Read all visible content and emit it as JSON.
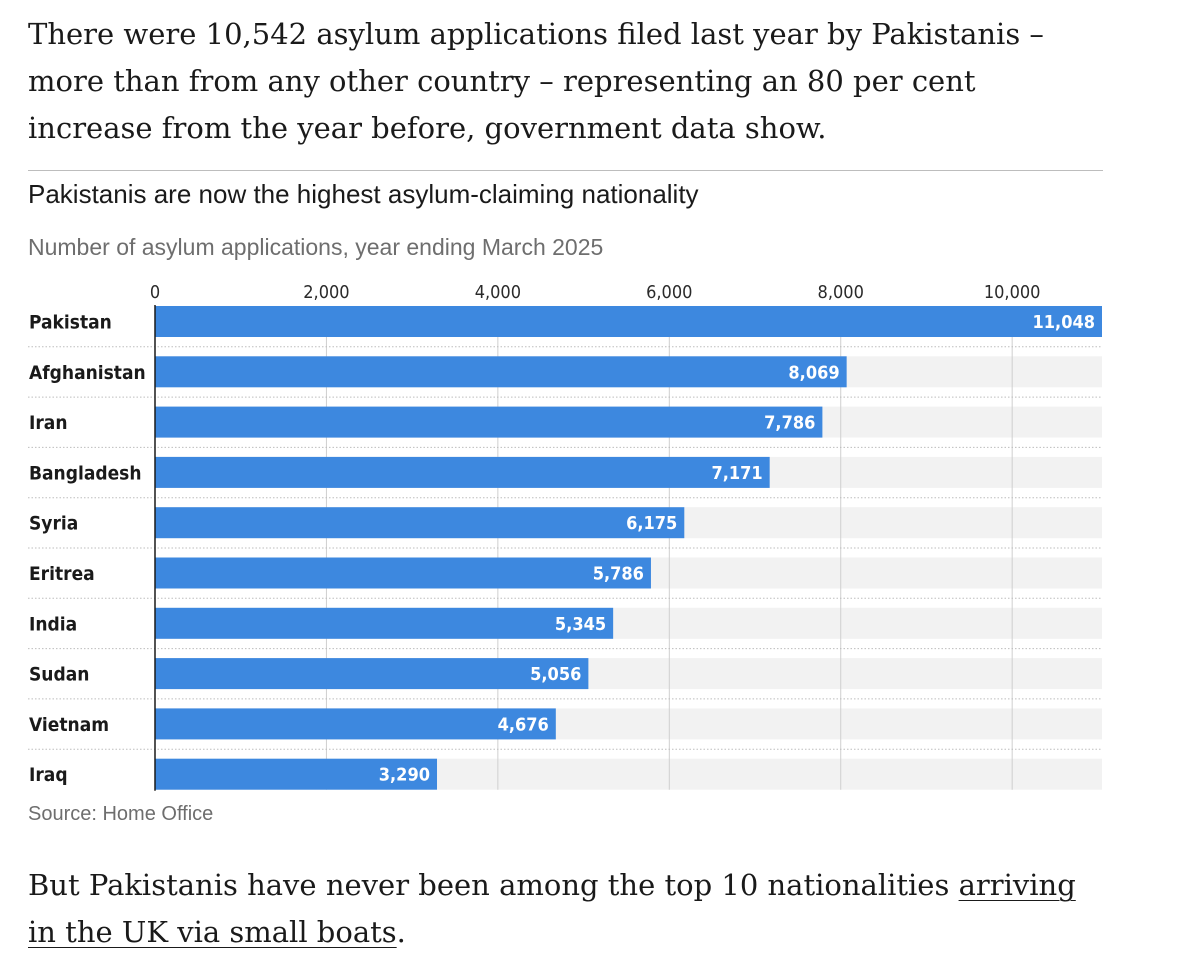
{
  "article": {
    "intro": "There were 10,542 asylum applications filed last year by Pakistanis – more than from any other country – representing an 80 per cent increase from the year before, government data show.",
    "outro_before": "But Pakistanis have never been among the top 10 nationalities ",
    "outro_link": "arriving in the UK via small boats",
    "outro_after": "."
  },
  "chart_data": {
    "type": "bar",
    "orientation": "horizontal",
    "title": "Pakistanis are now the highest asylum-claiming nationality",
    "subtitle": "Number of asylum applications, year ending March 2025",
    "source": "Source: Home Office",
    "categories": [
      "Pakistan",
      "Afghanistan",
      "Iran",
      "Bangladesh",
      "Syria",
      "Eritrea",
      "India",
      "Sudan",
      "Vietnam",
      "Iraq"
    ],
    "values": [
      11048,
      8069,
      7786,
      7171,
      6175,
      5786,
      5345,
      5056,
      4676,
      3290
    ],
    "value_labels": [
      "11,048",
      "8,069",
      "7,786",
      "7,171",
      "6,175",
      "5,786",
      "5,345",
      "5,056",
      "4,676",
      "3,290"
    ],
    "xlim": [
      0,
      11048
    ],
    "ticks": [
      0,
      2000,
      4000,
      6000,
      8000,
      10000
    ],
    "tick_labels": [
      "0",
      "2,000",
      "4,000",
      "6,000",
      "8,000",
      "10,000"
    ],
    "grid": true,
    "legend": "none",
    "colors": {
      "bar": "#3d88df",
      "track": "#f2f2f2",
      "grid": "#cfcfcf",
      "axis": "#1a1a1a"
    }
  }
}
